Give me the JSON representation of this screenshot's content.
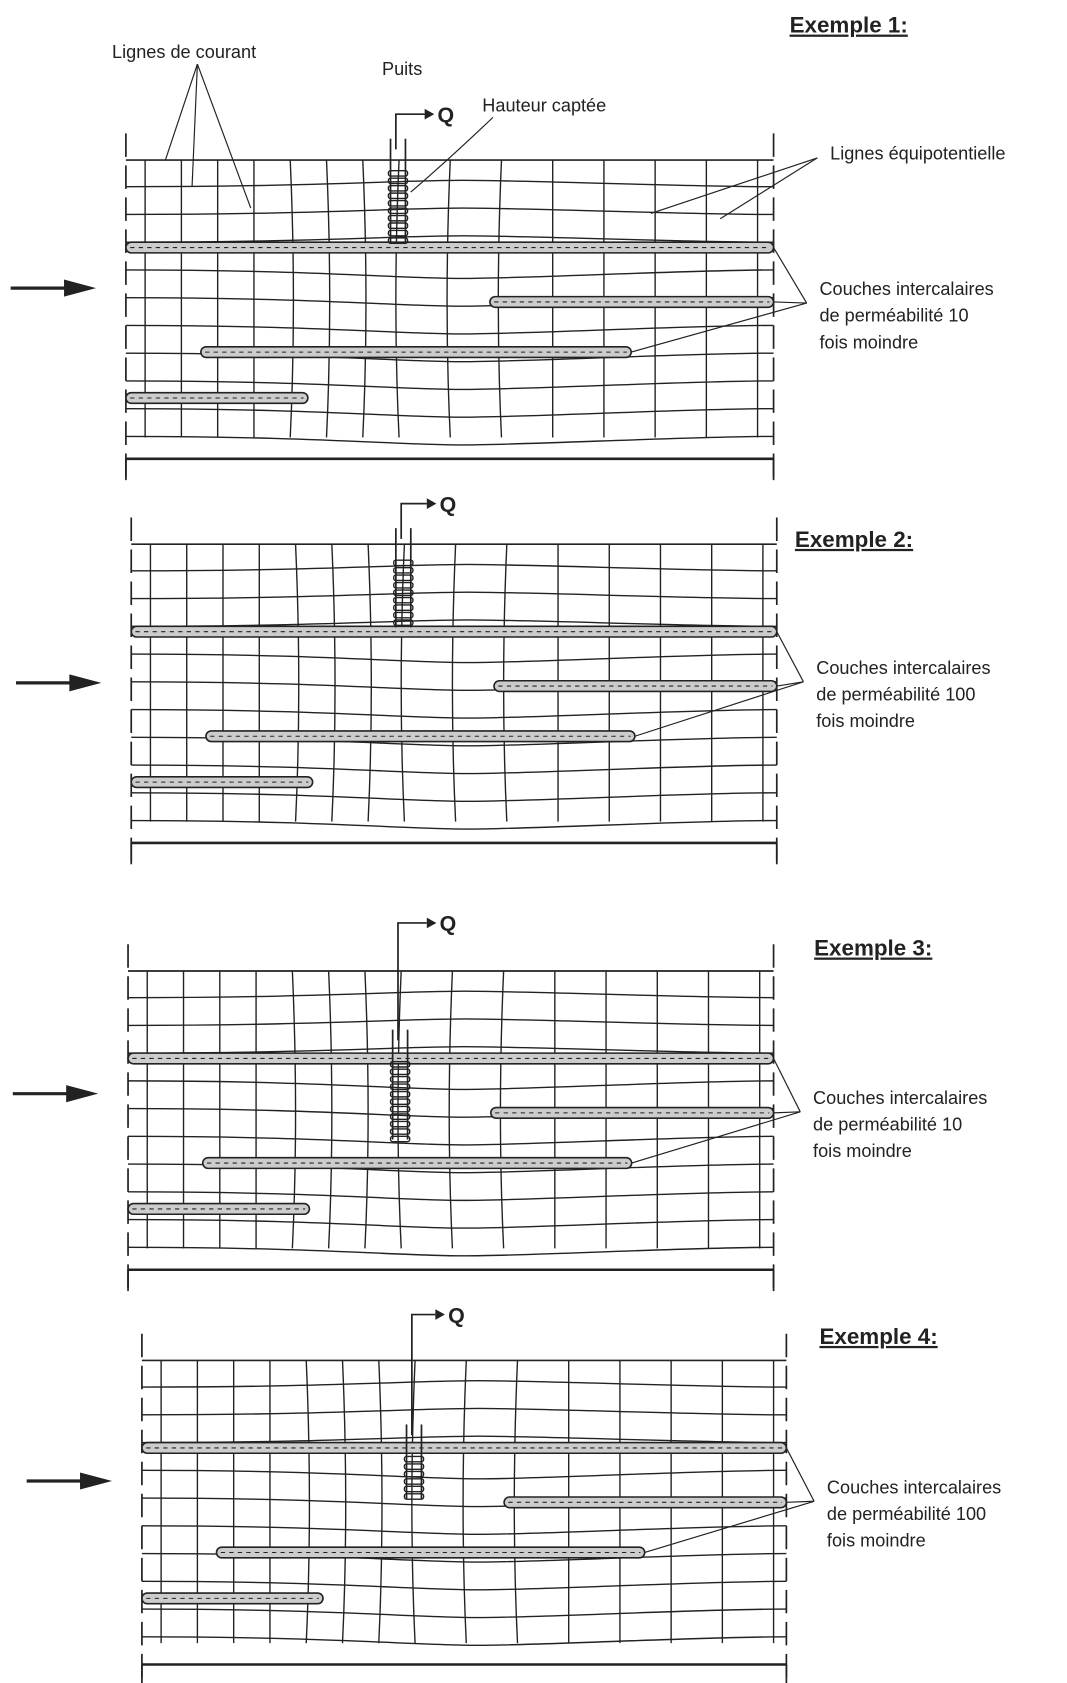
{
  "labels": {
    "streamlines": "Lignes de courant",
    "well": "Puits",
    "captured_height": "Hauteur captée",
    "equipotentials": "Lignes équipotentielle"
  },
  "panels": [
    {
      "title": "Exemple 1:",
      "q": "Q",
      "note": [
        "Couches intercalaires",
        "de perméabilité 10",
        "fois moindre"
      ]
    },
    {
      "title": "Exemple 2:",
      "q": "Q",
      "note": [
        "Couches intercalaires",
        "de perméabilité 100",
        "fois moindre"
      ]
    },
    {
      "title": "Exemple 3:",
      "q": "Q",
      "note": [
        "Couches intercalaires",
        "de perméabilité 10",
        "fois moindre"
      ]
    },
    {
      "title": "Exemple 4:",
      "q": "Q",
      "note": [
        "Couches intercalaires",
        "de perméabilité 100",
        "fois moindre"
      ]
    }
  ]
}
